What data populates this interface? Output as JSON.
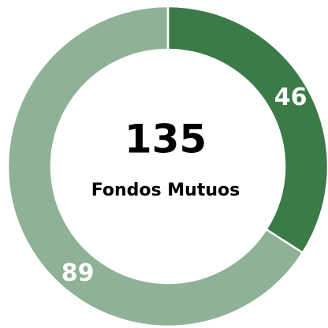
{
  "chart_data": {
    "type": "donut",
    "values": [
      46,
      89
    ],
    "colors": [
      "#3b7b48",
      "#8fb296"
    ],
    "center_value": "135",
    "center_label": "Fondos Mutuos"
  }
}
